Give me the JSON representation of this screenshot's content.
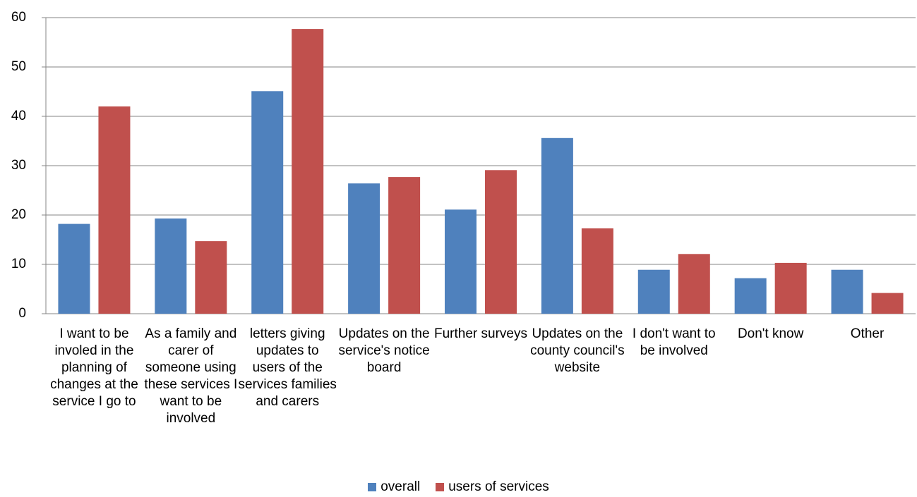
{
  "chart_data": {
    "type": "bar",
    "categories": [
      "I want to be involed in the planning of changes at the service I go to",
      "As a family and carer of someone using these services I want to be involved",
      "letters giving updates to users of the services families and carers",
      "Updates on the service's notice board",
      "Further surveys",
      "Updates on the county council's website",
      "I don't want to be involved",
      "Don't know",
      "Other"
    ],
    "series": [
      {
        "name": "overall",
        "color": "#4f81bd",
        "values": [
          18.2,
          19.3,
          45.1,
          26.4,
          21.1,
          35.6,
          8.9,
          7.2,
          8.9
        ]
      },
      {
        "name": "users of services",
        "color": "#c0504d",
        "values": [
          42,
          14.7,
          57.7,
          27.7,
          29.1,
          17.3,
          12.1,
          10.3,
          4.2
        ]
      }
    ],
    "ylim": [
      0,
      60
    ],
    "yticks": [
      0,
      10,
      20,
      30,
      40,
      50,
      60
    ],
    "grid": true,
    "legend": "bottom"
  }
}
